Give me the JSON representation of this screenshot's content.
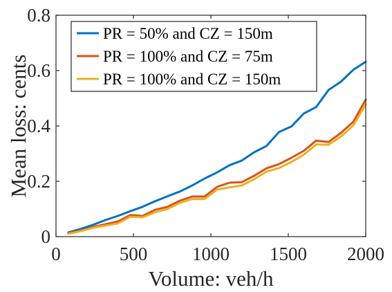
{
  "chart_data": {
    "type": "line",
    "xlabel": "Volume: veh/h",
    "ylabel": "Mean loss: cents",
    "xlim": [
      0,
      2000
    ],
    "ylim": [
      0,
      0.8
    ],
    "xticks": [
      0,
      500,
      1000,
      1500,
      2000
    ],
    "yticks": [
      0,
      0.2,
      0.4,
      0.6,
      0.8
    ],
    "xtick_labels": [
      "0",
      "500",
      "1000",
      "1500",
      "2000"
    ],
    "ytick_labels": [
      "0",
      "0.2",
      "0.4",
      "0.6",
      "0.8"
    ],
    "grid": false,
    "legend_position": "top-left",
    "series": [
      {
        "name": "PR = 50% and CZ = 150m",
        "color": "#0072BD",
        "x": [
          80,
          160,
          240,
          320,
          400,
          480,
          560,
          640,
          720,
          800,
          880,
          960,
          1040,
          1120,
          1200,
          1280,
          1360,
          1440,
          1520,
          1600,
          1680,
          1760,
          1840,
          1920,
          2000
        ],
        "y": [
          0.015,
          0.028,
          0.043,
          0.06,
          0.075,
          0.092,
          0.108,
          0.128,
          0.146,
          0.163,
          0.185,
          0.21,
          0.232,
          0.258,
          0.275,
          0.305,
          0.328,
          0.378,
          0.398,
          0.445,
          0.468,
          0.53,
          0.56,
          0.603,
          0.632
        ]
      },
      {
        "name": "PR = 100% and CZ = 75m",
        "color": "#D95319",
        "x": [
          80,
          160,
          240,
          320,
          400,
          480,
          560,
          640,
          720,
          800,
          880,
          960,
          1040,
          1120,
          1200,
          1280,
          1360,
          1440,
          1520,
          1600,
          1680,
          1760,
          1840,
          1920,
          2000
        ],
        "y": [
          0.013,
          0.022,
          0.035,
          0.045,
          0.055,
          0.078,
          0.075,
          0.097,
          0.108,
          0.13,
          0.145,
          0.145,
          0.18,
          0.195,
          0.197,
          0.22,
          0.247,
          0.262,
          0.285,
          0.31,
          0.347,
          0.342,
          0.375,
          0.415,
          0.495
        ]
      },
      {
        "name": "PR = 100% and CZ = 150m",
        "color": "#EDB120",
        "x": [
          80,
          160,
          240,
          320,
          400,
          480,
          560,
          640,
          720,
          800,
          880,
          960,
          1040,
          1120,
          1200,
          1280,
          1360,
          1440,
          1520,
          1600,
          1680,
          1760,
          1840,
          1920,
          2000
        ],
        "y": [
          0.01,
          0.02,
          0.032,
          0.04,
          0.048,
          0.072,
          0.07,
          0.088,
          0.1,
          0.122,
          0.136,
          0.136,
          0.17,
          0.178,
          0.185,
          0.208,
          0.235,
          0.248,
          0.27,
          0.296,
          0.333,
          0.332,
          0.362,
          0.402,
          0.478
        ]
      }
    ]
  }
}
